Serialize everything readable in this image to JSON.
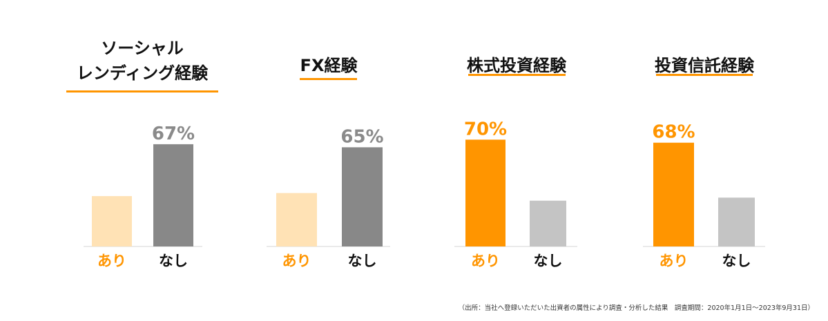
{
  "colors": {
    "accent": "#FF9500",
    "accent_light": "#FFE2B5",
    "dark_gray": "#888888",
    "light_gray": "#C4C4C4",
    "baseline": "#E3E3E3",
    "underline": "#FF9500",
    "label_gray": "#8A8A8A",
    "text": "#111111"
  },
  "chart_data": [
    {
      "type": "bar",
      "title_lines": [
        "ソーシャル",
        "レンディング経験"
      ],
      "categories": [
        "あり",
        "なし"
      ],
      "values": [
        33,
        67
      ],
      "data_labels": [
        "",
        "67%"
      ],
      "highlight": "なし",
      "ylim": [
        0,
        100
      ]
    },
    {
      "type": "bar",
      "title_lines": [
        "FX経験"
      ],
      "categories": [
        "あり",
        "なし"
      ],
      "values": [
        35,
        65
      ],
      "data_labels": [
        "",
        "65%"
      ],
      "highlight": "なし",
      "ylim": [
        0,
        100
      ]
    },
    {
      "type": "bar",
      "title_lines": [
        "株式投資経験"
      ],
      "categories": [
        "あり",
        "なし"
      ],
      "values": [
        70,
        30
      ],
      "data_labels": [
        "70%",
        ""
      ],
      "highlight": "あり",
      "ylim": [
        0,
        100
      ]
    },
    {
      "type": "bar",
      "title_lines": [
        "投資信託経験"
      ],
      "categories": [
        "あり",
        "なし"
      ],
      "values": [
        68,
        32
      ],
      "data_labels": [
        "68%",
        ""
      ],
      "highlight": "あり",
      "ylim": [
        0,
        100
      ]
    }
  ],
  "footnote": "（出所：当社へ登録いただいた出資者の属性により調査・分析した結果　調査期間：2020年1月1日〜2023年9月31日）"
}
